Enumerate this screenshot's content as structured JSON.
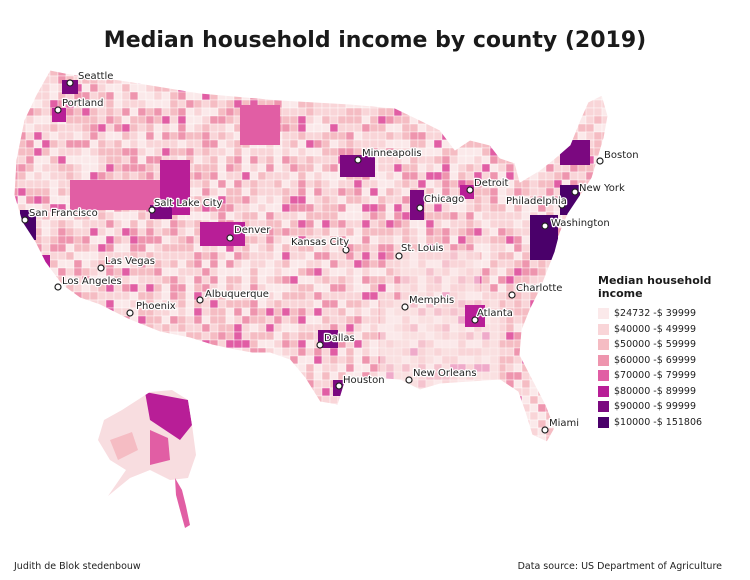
{
  "title": "Median household income by county (2019)",
  "legend": {
    "title": "Median household income",
    "items": [
      {
        "label": "$24732 -$ 39999",
        "color": "#fbe9ea"
      },
      {
        "label": "$40000 -$ 49999",
        "color": "#f9d5d8"
      },
      {
        "label": "$50000 -$ 59999",
        "color": "#f5bcc3"
      },
      {
        "label": "$60000 -$ 69999",
        "color": "#ee95ae"
      },
      {
        "label": "$70000 -$ 79999",
        "color": "#e15ea4"
      },
      {
        "label": "$80000 -$ 89999",
        "color": "#b81e97"
      },
      {
        "label": "$90000 -$ 99999",
        "color": "#7b0880"
      },
      {
        "label": "$10000 -$ 151806",
        "color": "#4a006a"
      }
    ]
  },
  "cities": [
    {
      "name": "Seattle"
    },
    {
      "name": "Portland"
    },
    {
      "name": "San Francisco"
    },
    {
      "name": "Salt Lake City"
    },
    {
      "name": "Denver"
    },
    {
      "name": "Las Vegas"
    },
    {
      "name": "Los Angeles"
    },
    {
      "name": "Phoenix"
    },
    {
      "name": "Albuquerque"
    },
    {
      "name": "Minneapolis"
    },
    {
      "name": "Kansas City"
    },
    {
      "name": "Chicago"
    },
    {
      "name": "Detroit"
    },
    {
      "name": "St. Louis"
    },
    {
      "name": "Memphis"
    },
    {
      "name": "Dallas"
    },
    {
      "name": "Houston"
    },
    {
      "name": "New Orleans"
    },
    {
      "name": "Atlanta"
    },
    {
      "name": "Charlotte"
    },
    {
      "name": "Miami"
    },
    {
      "name": "Washington"
    },
    {
      "name": "Philadelphia"
    },
    {
      "name": "New York"
    },
    {
      "name": "Boston"
    }
  ],
  "credit": "Judith de Blok stedenbouw",
  "source": "Data source: US Department of Agriculture"
}
